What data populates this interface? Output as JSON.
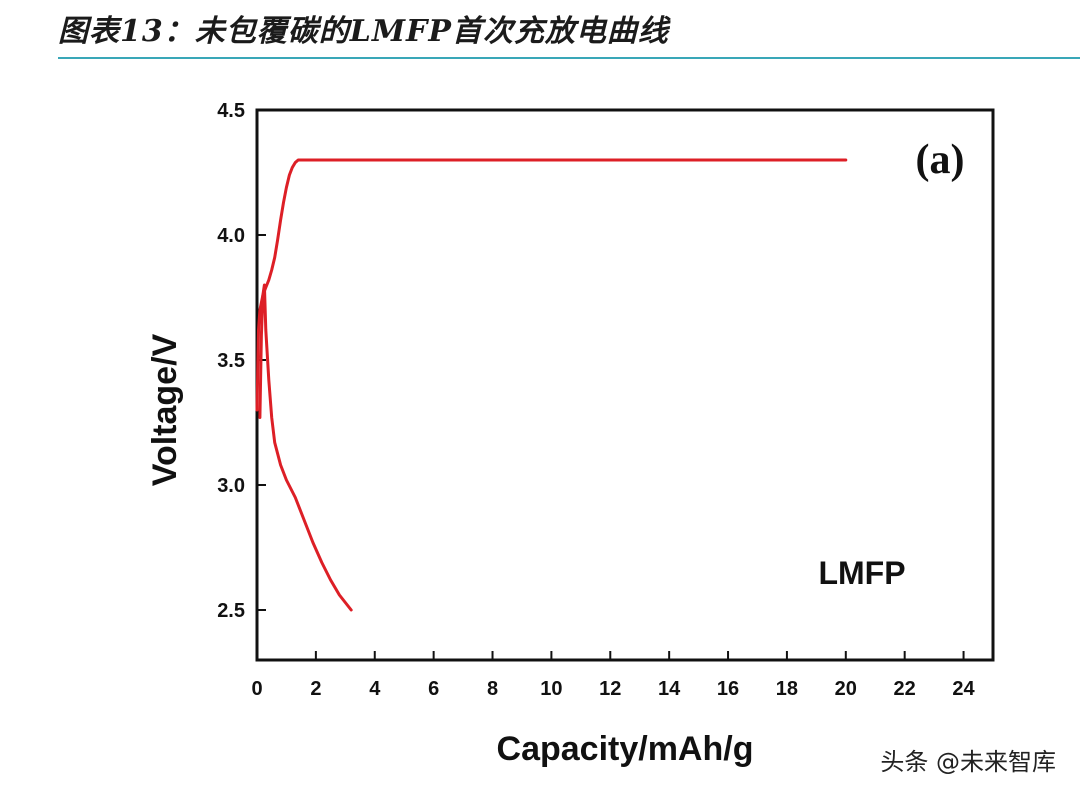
{
  "figure": {
    "title": "图表13：未包覆碳的LMFP首次充放电曲线"
  },
  "watermark": {
    "text": "头条 @未来智库"
  },
  "colors": {
    "series": "#dd1f26",
    "axis": "#111111",
    "title_rule": "#39a7b8"
  },
  "chart_data": {
    "type": "line",
    "xlabel": "Capacity/mAh/g",
    "ylabel": "Voltage/V",
    "xlim": [
      0,
      25
    ],
    "ylim": [
      2.3,
      4.5
    ],
    "x_ticks": [
      0,
      2,
      4,
      6,
      8,
      10,
      12,
      14,
      16,
      18,
      20,
      22,
      24
    ],
    "y_ticks": [
      2.5,
      3.0,
      3.5,
      4.0,
      4.5
    ],
    "grid": false,
    "panel_label": "(a)",
    "series_annotation": "LMFP",
    "series": [
      {
        "segment": "charge",
        "x": [
          0.0,
          0.05,
          0.1,
          0.15,
          0.2,
          0.3,
          0.4,
          0.5,
          0.6,
          0.7,
          0.8,
          0.9,
          1.0,
          1.1,
          1.2,
          1.3,
          1.4,
          1.5,
          3.0,
          6.0,
          10.0,
          14.0,
          18.0,
          20.0
        ],
        "y": [
          3.3,
          3.62,
          3.7,
          3.73,
          3.76,
          3.79,
          3.82,
          3.86,
          3.91,
          3.98,
          4.06,
          4.13,
          4.19,
          4.24,
          4.27,
          4.29,
          4.3,
          4.3,
          4.3,
          4.3,
          4.3,
          4.3,
          4.3,
          4.3
        ]
      },
      {
        "segment": "discharge",
        "x": [
          0.1,
          0.15,
          0.2,
          0.25,
          0.3,
          0.4,
          0.5,
          0.6,
          0.8,
          1.0,
          1.3,
          1.6,
          1.9,
          2.2,
          2.5,
          2.8,
          3.0,
          3.2
        ],
        "y": [
          3.27,
          3.6,
          3.76,
          3.8,
          3.62,
          3.42,
          3.27,
          3.17,
          3.08,
          3.02,
          2.95,
          2.86,
          2.77,
          2.69,
          2.62,
          2.56,
          2.53,
          2.5
        ]
      }
    ]
  }
}
